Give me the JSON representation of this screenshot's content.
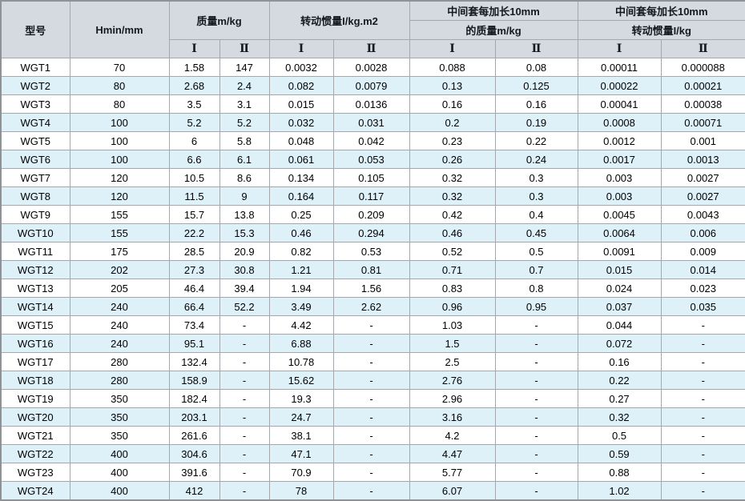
{
  "table": {
    "header": {
      "col_model": "型号",
      "col_hmin": "Hmin/mm",
      "group_mass": "质量m/kg",
      "group_inertia": "转动惯量I/kg.m2",
      "group_ext_mass_line1": "中间套每加长10mm",
      "group_ext_mass_line2": "的质量m/kg",
      "group_ext_inertia_line1": "中间套每加长10mm",
      "group_ext_inertia_line2": "转动惯量I/kg",
      "sub_I": "Ⅰ",
      "sub_II": "Ⅱ"
    },
    "rows": [
      [
        "WGT1",
        "70",
        "1.58",
        "147",
        "0.0032",
        "0.0028",
        "0.088",
        "0.08",
        "0.00011",
        "0.000088"
      ],
      [
        "WGT2",
        "80",
        "2.68",
        "2.4",
        "0.082",
        "0.0079",
        "0.13",
        "0.125",
        "0.00022",
        "0.00021"
      ],
      [
        "WGT3",
        "80",
        "3.5",
        "3.1",
        "0.015",
        "0.0136",
        "0.16",
        "0.16",
        "0.00041",
        "0.00038"
      ],
      [
        "WGT4",
        "100",
        "5.2",
        "5.2",
        "0.032",
        "0.031",
        "0.2",
        "0.19",
        "0.0008",
        "0.00071"
      ],
      [
        "WGT5",
        "100",
        "6",
        "5.8",
        "0.048",
        "0.042",
        "0.23",
        "0.22",
        "0.0012",
        "0.001"
      ],
      [
        "WGT6",
        "100",
        "6.6",
        "6.1",
        "0.061",
        "0.053",
        "0.26",
        "0.24",
        "0.0017",
        "0.0013"
      ],
      [
        "WGT7",
        "120",
        "10.5",
        "8.6",
        "0.134",
        "0.105",
        "0.32",
        "0.3",
        "0.003",
        "0.0027"
      ],
      [
        "WGT8",
        "120",
        "11.5",
        "9",
        "0.164",
        "0.117",
        "0.32",
        "0.3",
        "0.003",
        "0.0027"
      ],
      [
        "WGT9",
        "155",
        "15.7",
        "13.8",
        "0.25",
        "0.209",
        "0.42",
        "0.4",
        "0.0045",
        "0.0043"
      ],
      [
        "WGT10",
        "155",
        "22.2",
        "15.3",
        "0.46",
        "0.294",
        "0.46",
        "0.45",
        "0.0064",
        "0.006"
      ],
      [
        "WGT11",
        "175",
        "28.5",
        "20.9",
        "0.82",
        "0.53",
        "0.52",
        "0.5",
        "0.0091",
        "0.009"
      ],
      [
        "WGT12",
        "202",
        "27.3",
        "30.8",
        "1.21",
        "0.81",
        "0.71",
        "0.7",
        "0.015",
        "0.014"
      ],
      [
        "WGT13",
        "205",
        "46.4",
        "39.4",
        "1.94",
        "1.56",
        "0.83",
        "0.8",
        "0.024",
        "0.023"
      ],
      [
        "WGT14",
        "240",
        "66.4",
        "52.2",
        "3.49",
        "2.62",
        "0.96",
        "0.95",
        "0.037",
        "0.035"
      ],
      [
        "WGT15",
        "240",
        "73.4",
        "-",
        "4.42",
        "-",
        "1.03",
        "-",
        "0.044",
        "-"
      ],
      [
        "WGT16",
        "240",
        "95.1",
        "-",
        "6.88",
        "-",
        "1.5",
        "-",
        "0.072",
        "-"
      ],
      [
        "WGT17",
        "280",
        "132.4",
        "-",
        "10.78",
        "-",
        "2.5",
        "-",
        "0.16",
        "-"
      ],
      [
        "WGT18",
        "280",
        "158.9",
        "-",
        "15.62",
        "-",
        "2.76",
        "-",
        "0.22",
        "-"
      ],
      [
        "WGT19",
        "350",
        "182.4",
        "-",
        "19.3",
        "-",
        "2.96",
        "-",
        "0.27",
        "-"
      ],
      [
        "WGT20",
        "350",
        "203.1",
        "-",
        "24.7",
        "-",
        "3.16",
        "-",
        "0.32",
        "-"
      ],
      [
        "WGT21",
        "350",
        "261.6",
        "-",
        "38.1",
        "-",
        "4.2",
        "-",
        "0.5",
        "-"
      ],
      [
        "WGT22",
        "400",
        "304.6",
        "-",
        "47.1",
        "-",
        "4.47",
        "-",
        "0.59",
        "-"
      ],
      [
        "WGT23",
        "400",
        "391.6",
        "-",
        "70.9",
        "-",
        "5.77",
        "-",
        "0.88",
        "-"
      ],
      [
        "WGT24",
        "400",
        "412",
        "-",
        "78",
        "-",
        "6.07",
        "-",
        "1.02",
        "-"
      ]
    ]
  },
  "colors": {
    "header_bg": "#d5d9e0",
    "row_alt_bg": "#def1f8",
    "row_bg": "#ffffff",
    "grid_line": "#a4a7ab",
    "outer_border": "#8f9398",
    "text": "#000000"
  }
}
